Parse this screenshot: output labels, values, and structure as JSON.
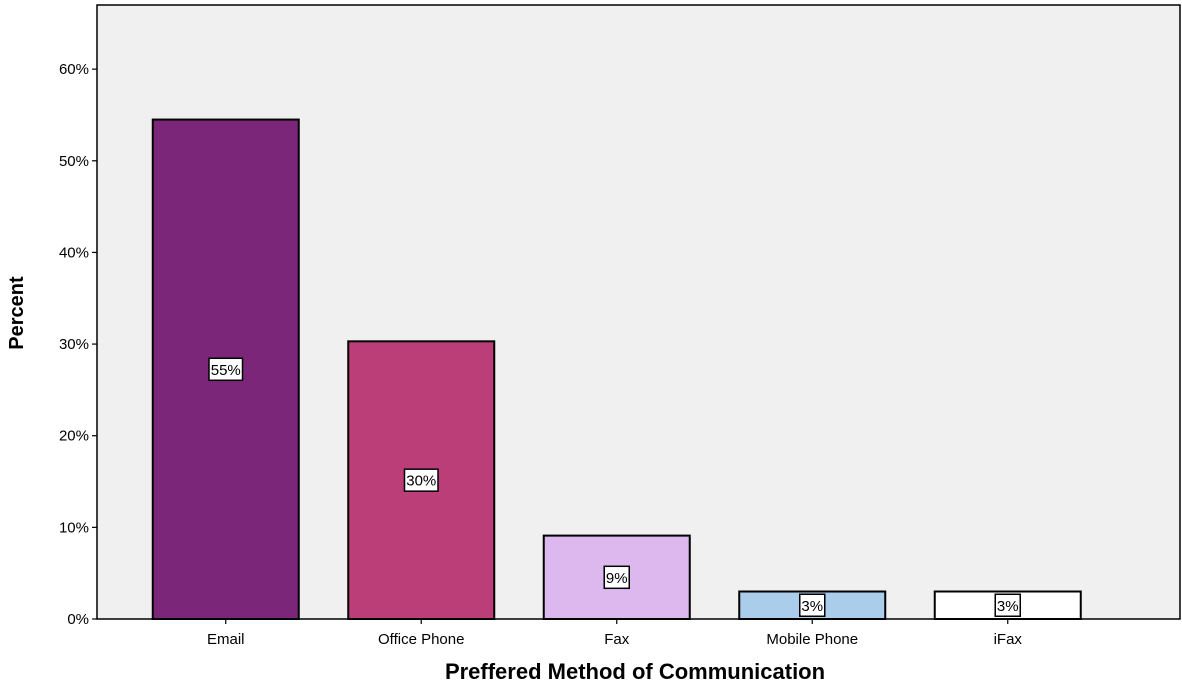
{
  "chart_data": {
    "type": "bar",
    "title": "",
    "xlabel": "Preffered Method of Communication",
    "ylabel": "Percent",
    "categories": [
      "Email",
      "Office Phone",
      "Fax",
      "Mobile Phone",
      "iFax"
    ],
    "values": [
      54.5,
      30.3,
      9.1,
      3.0,
      3.0
    ],
    "data_labels": [
      "55%",
      "30%",
      "9%",
      "3%",
      "3%"
    ],
    "colors": [
      "#7b2678",
      "#bc3e78",
      "#ddb8ee",
      "#aacdeb",
      "#ffffff"
    ],
    "yticks": [
      0,
      10,
      20,
      30,
      40,
      50,
      60
    ],
    "ytick_labels": [
      "0%",
      "10%",
      "20%",
      "30%",
      "40%",
      "50%",
      "60%"
    ],
    "ylim": [
      0,
      67
    ],
    "grid": false,
    "plot_background": "#f0f0f0"
  }
}
